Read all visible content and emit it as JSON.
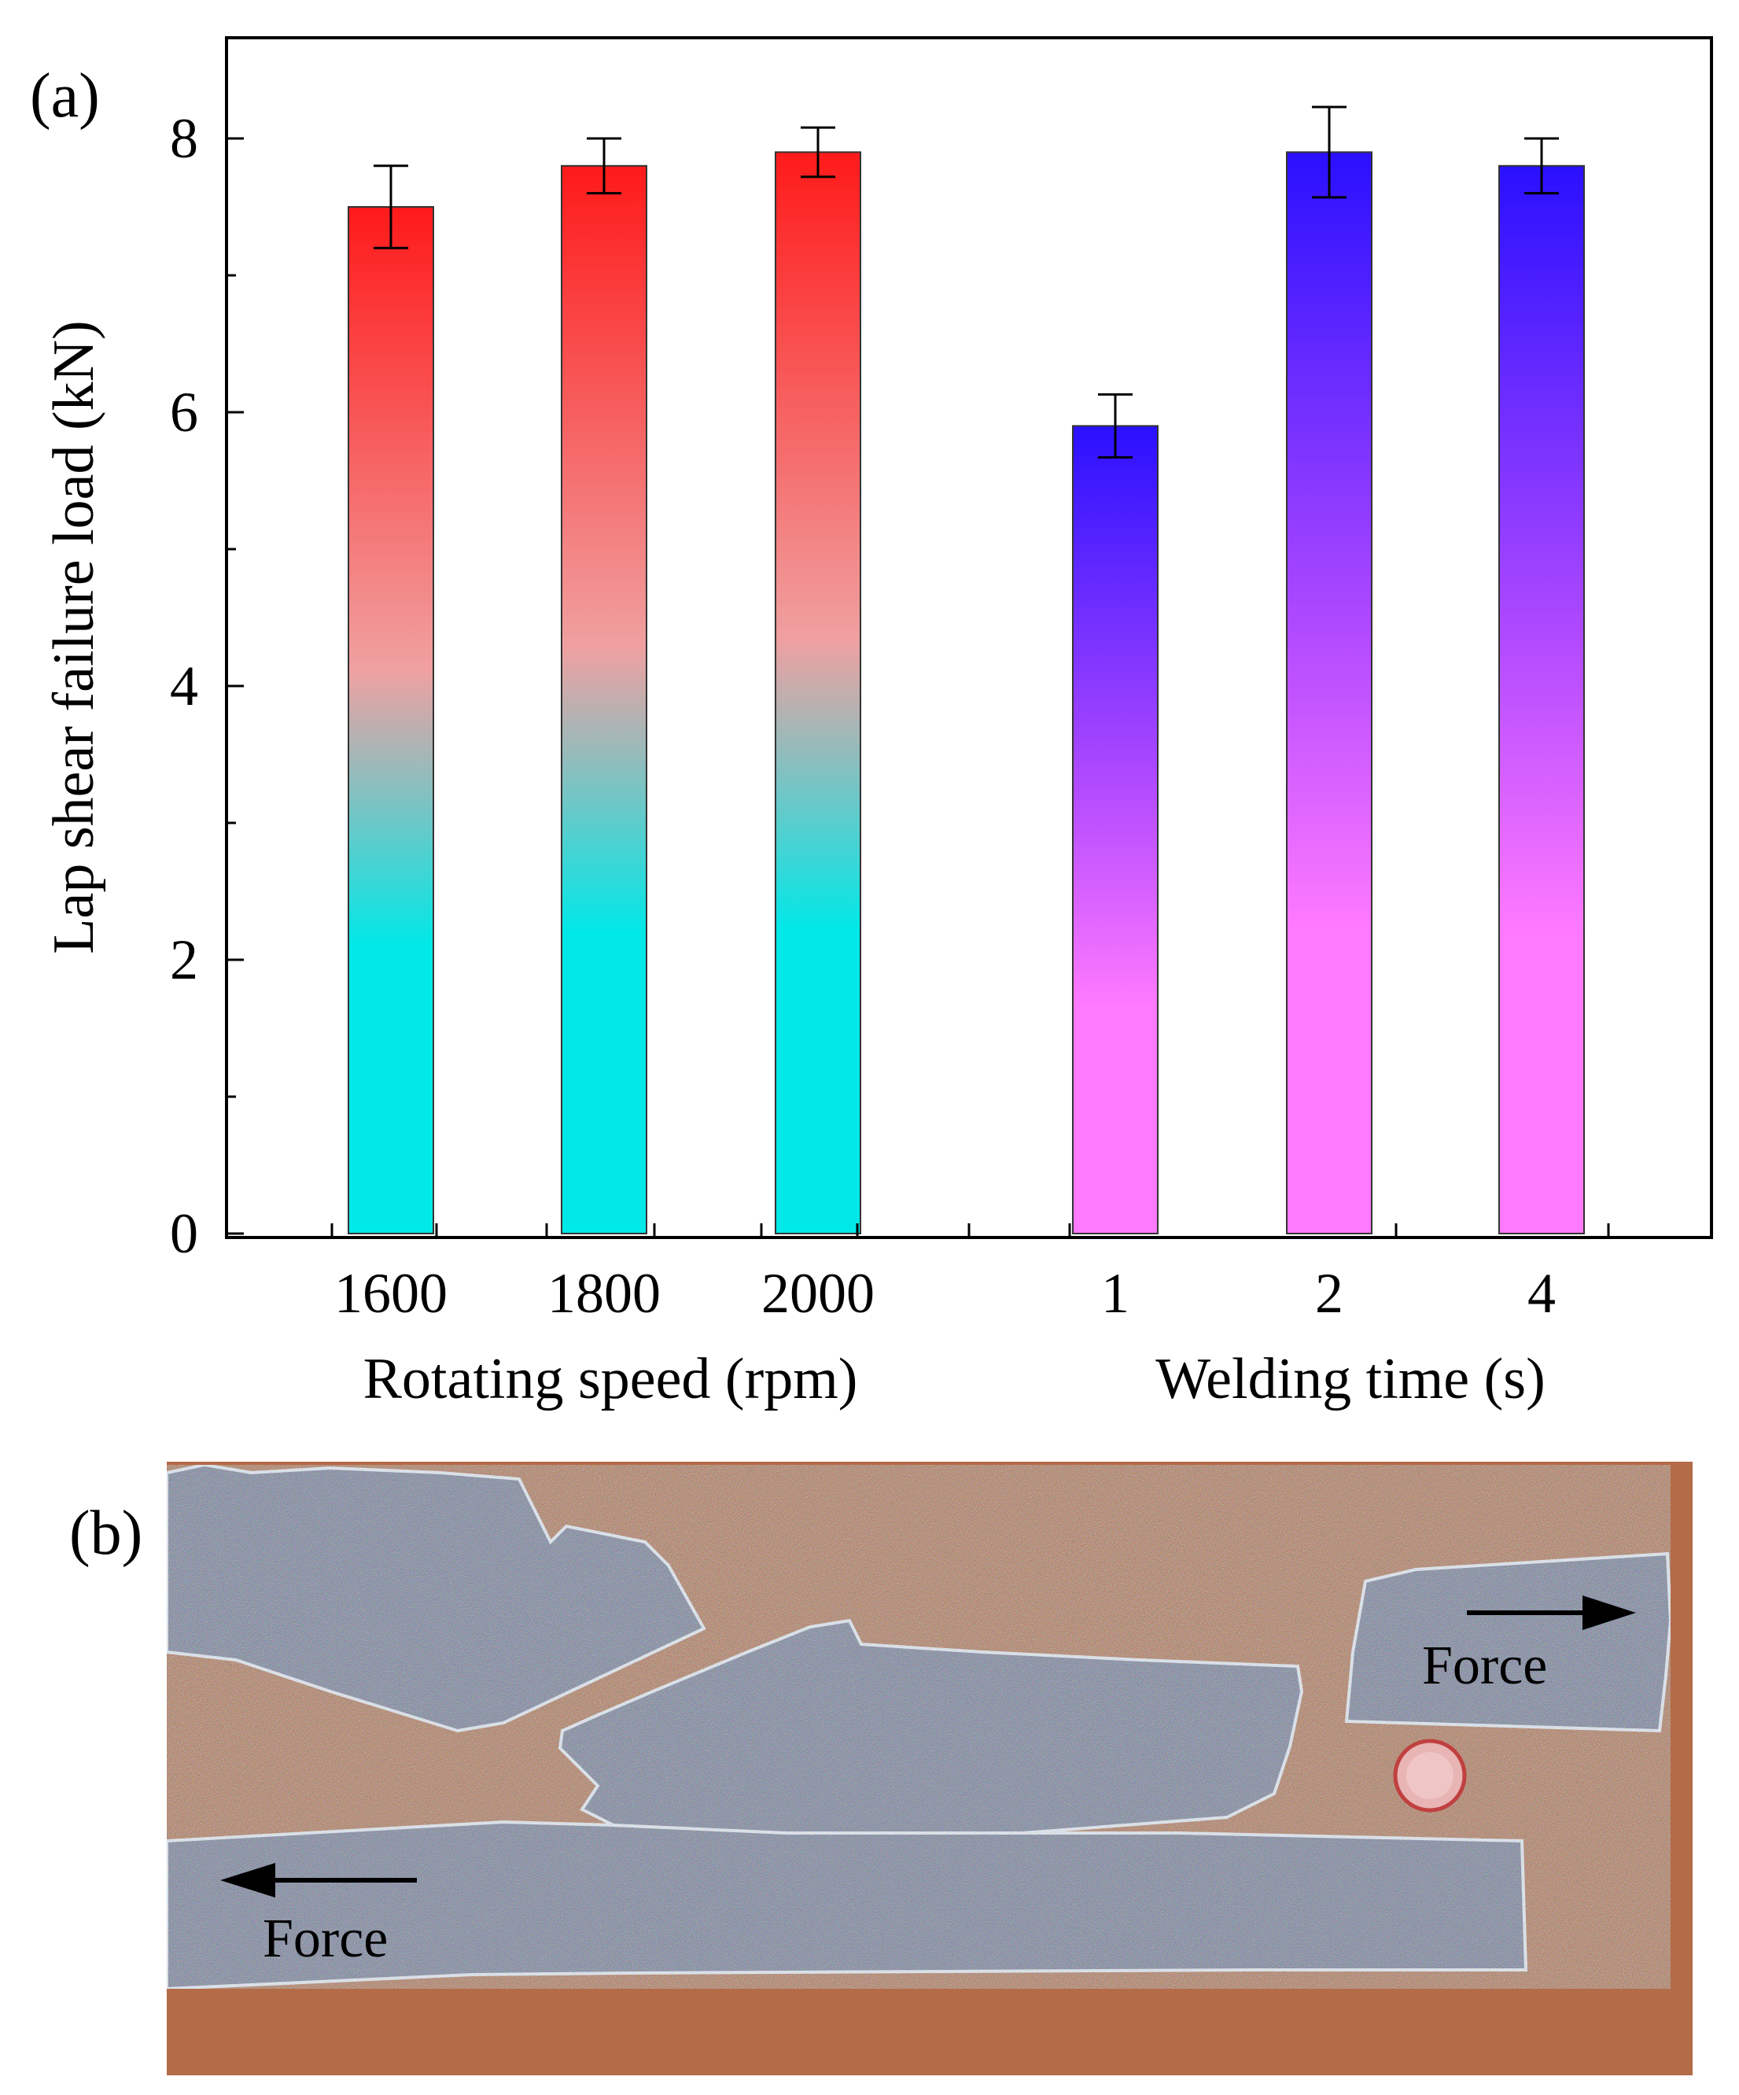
{
  "panel_a": {
    "label": "(a)",
    "chart_data": {
      "type": "bar",
      "ylabel": "Lap shear failure load (kN)",
      "ylim": [
        0,
        8.8
      ],
      "yticks": [
        0,
        2,
        4,
        6,
        8
      ],
      "grid": false,
      "legend": "none",
      "groups": [
        {
          "xlabel": "Rotating speed (rpm)",
          "categories": [
            "1600",
            "1800",
            "2000"
          ],
          "values": [
            7.5,
            7.8,
            7.9
          ],
          "errors": [
            0.3,
            0.2,
            0.18
          ],
          "gradient": {
            "top": "#ff1a1a",
            "middle": "#f0a0a0",
            "bottom": "#00e8e8"
          }
        },
        {
          "xlabel": "Welding time (s)",
          "categories": [
            "1",
            "2",
            "4"
          ],
          "values": [
            5.9,
            7.9,
            7.8
          ],
          "errors": [
            0.23,
            0.33,
            0.2
          ],
          "gradient": {
            "top": "#2a10ff",
            "middle": "#b34bff",
            "bottom": "#ff7aff"
          }
        }
      ]
    }
  },
  "panel_b": {
    "label": "(b)",
    "force_labels": [
      "Force",
      "Force"
    ],
    "colors": {
      "background": "#a86040",
      "steel": "#8a93a6"
    }
  }
}
